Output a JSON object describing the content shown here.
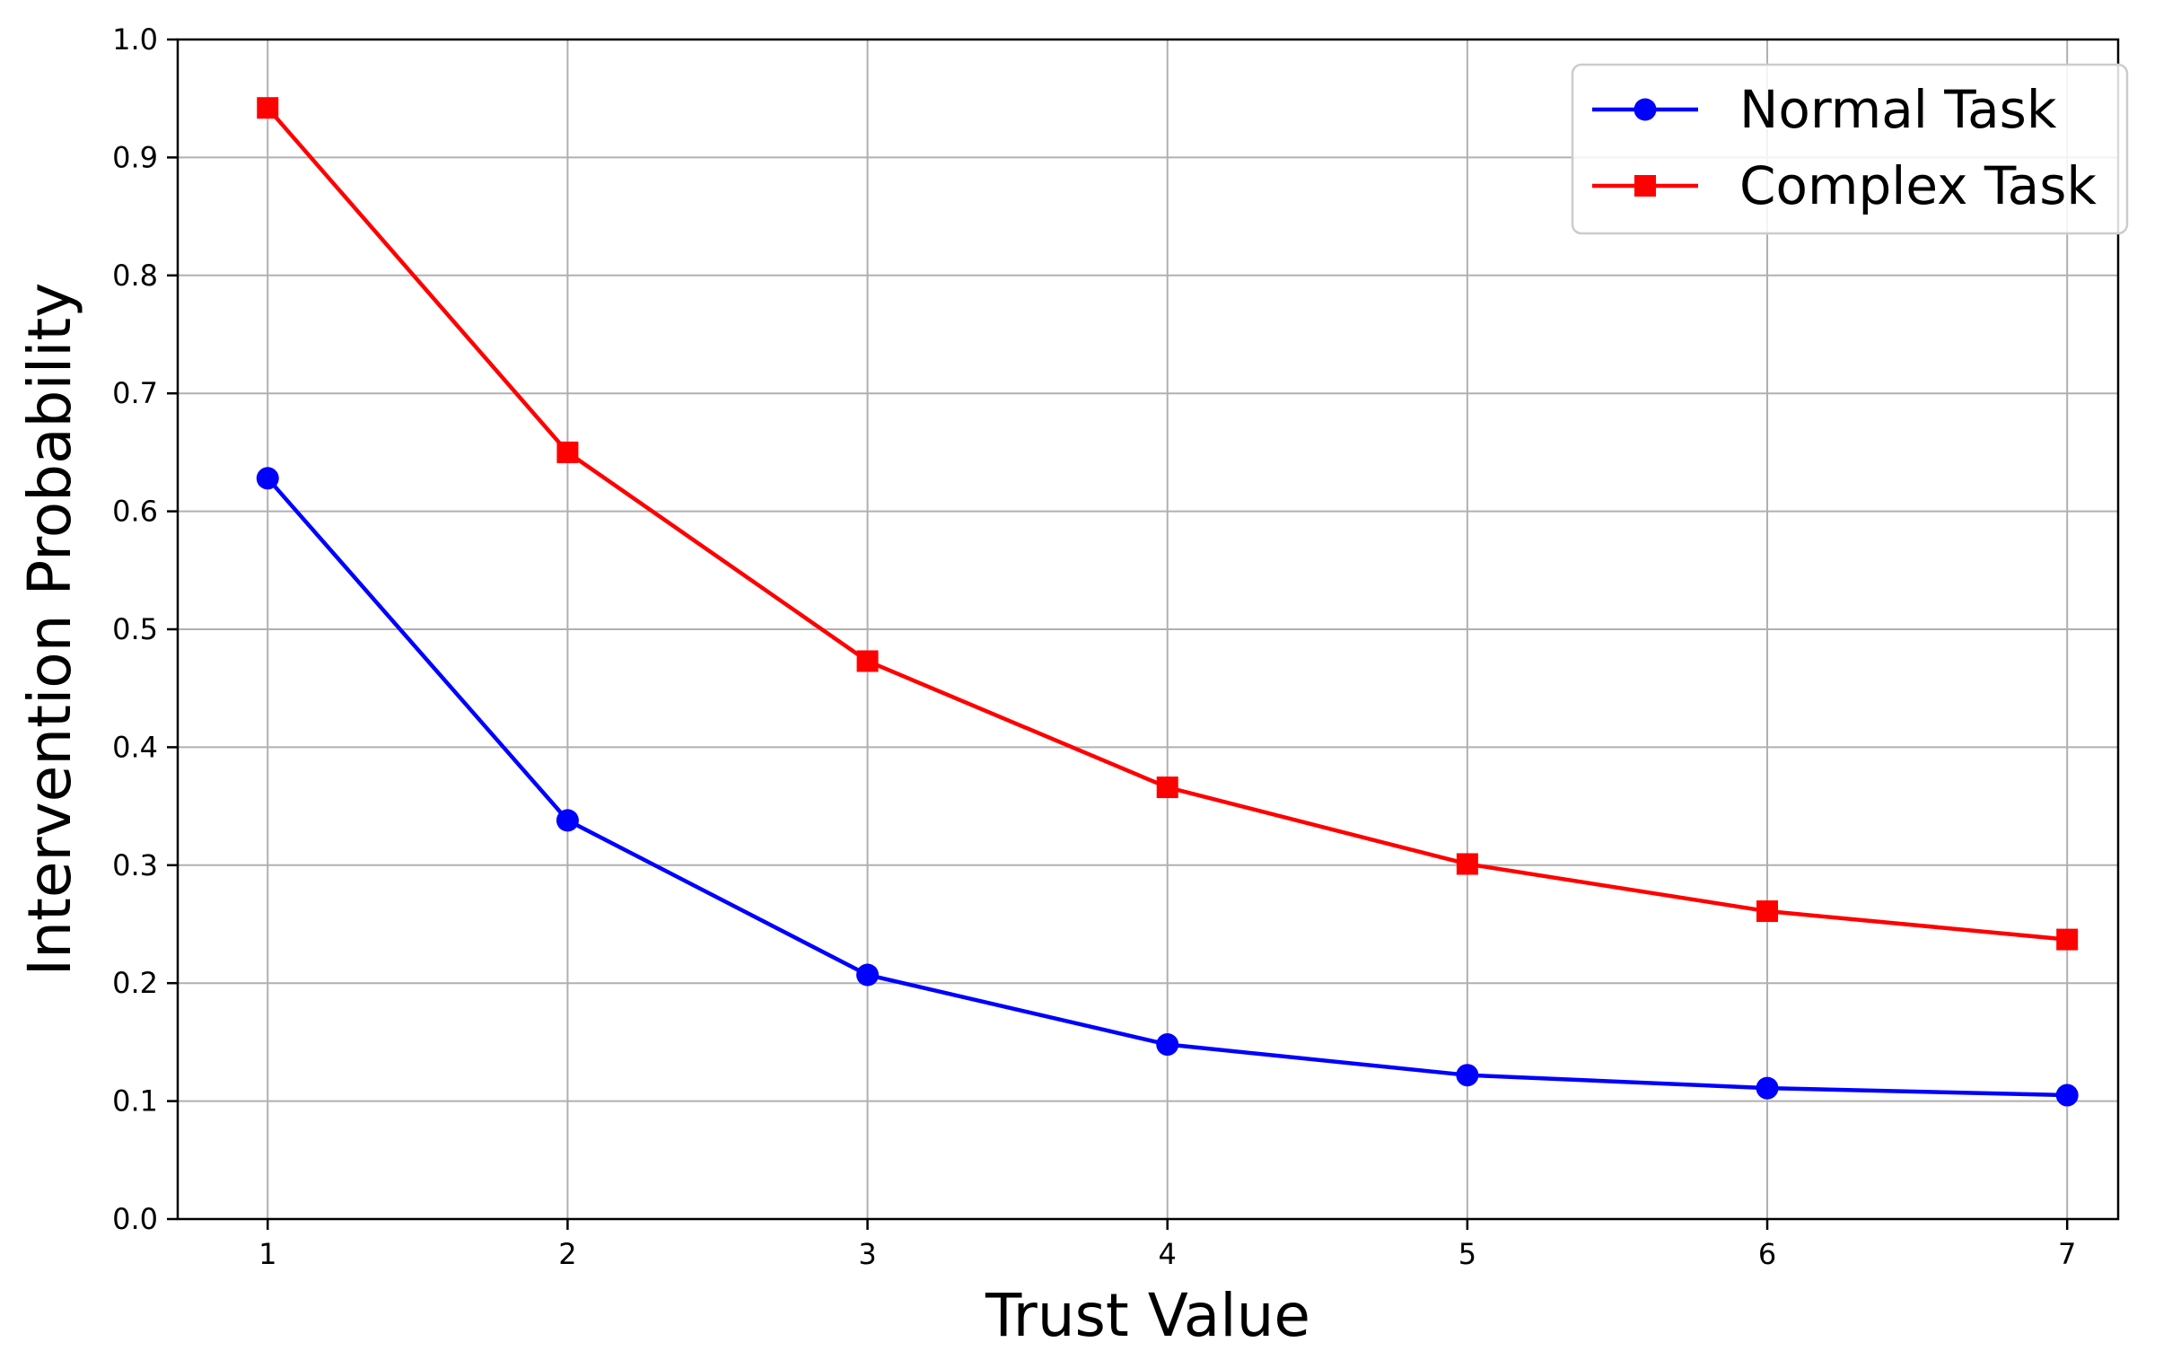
{
  "chart_data": {
    "type": "line",
    "xlabel": "Trust Value",
    "ylabel": "Intervention Probability",
    "x": [
      1,
      2,
      3,
      4,
      5,
      6,
      7
    ],
    "xticks": [
      "1",
      "2",
      "3",
      "4",
      "5",
      "6",
      "7"
    ],
    "yticks": [
      "0.0",
      "0.1",
      "0.2",
      "0.3",
      "0.4",
      "0.5",
      "0.6",
      "0.7",
      "0.8",
      "0.9",
      "1.0"
    ],
    "xlim": [
      0.7,
      7.17
    ],
    "ylim": [
      0.0,
      1.0
    ],
    "grid": true,
    "legend_position": "top-right",
    "series": [
      {
        "name": "Normal Task",
        "color": "#0000ff",
        "marker": "circle",
        "values": [
          0.628,
          0.338,
          0.207,
          0.148,
          0.122,
          0.111,
          0.105
        ]
      },
      {
        "name": "Complex Task",
        "color": "#ff0000",
        "marker": "square",
        "values": [
          0.942,
          0.65,
          0.473,
          0.366,
          0.301,
          0.261,
          0.237
        ]
      }
    ]
  }
}
